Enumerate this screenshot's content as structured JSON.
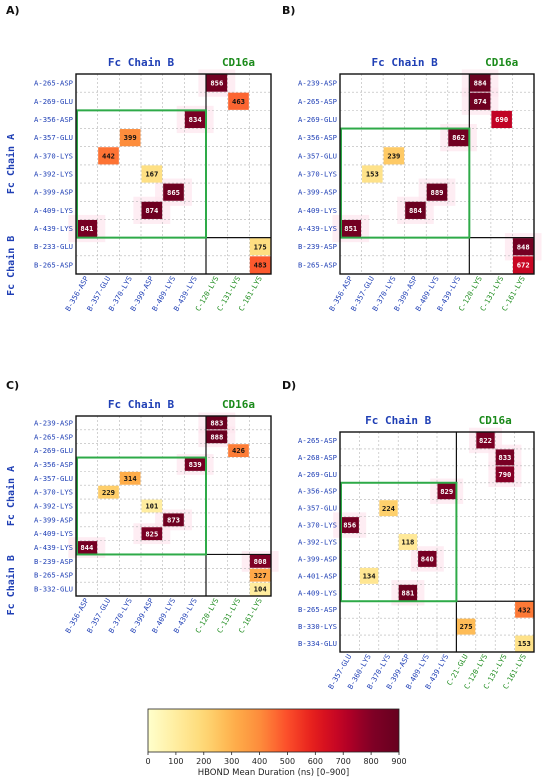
{
  "colors": {
    "fc_label": "#1f3fb5",
    "cd16a_label": "#1a8a1a",
    "fc_fc_box": "#2eaa48",
    "outer_box": "#111111",
    "grid": "#b4b4b4"
  },
  "colormap": {
    "min": 0,
    "max": 900,
    "stops": [
      "#ffffcc",
      "#ffeda0",
      "#fed976",
      "#feb24c",
      "#fd8d3c",
      "#fc4e2a",
      "#e31a1c",
      "#bd0026",
      "#800026",
      "#67001f"
    ]
  },
  "colorbar": {
    "title": "HBOND Mean Duration (ns) [0–900]",
    "ticks": [
      "0",
      "100",
      "200",
      "300",
      "400",
      "500",
      "600",
      "700",
      "800",
      "900"
    ]
  },
  "chart_data": [
    {
      "type": "heatmap",
      "panel_label": "A)",
      "header_fc": "Fc Chain B",
      "header_cd16a": "CD16a",
      "side_label_a": "Fc Chain A",
      "side_label_b": "Fc Chain B",
      "rows": [
        "A-265-ASP",
        "A-269-GLU",
        "A-356-ASP",
        "A-357-GLU",
        "A-370-LYS",
        "A-392-LYS",
        "A-399-ASP",
        "A-409-LYS",
        "A-439-LYS",
        "B-233-GLU",
        "B-265-ASP"
      ],
      "row_chain": [
        "A",
        "A",
        "A",
        "A",
        "A",
        "A",
        "A",
        "A",
        "A",
        "B",
        "B"
      ],
      "cols": [
        "B-356-ASP",
        "B-357-GLU",
        "B-370-LYS",
        "B-399-ASP",
        "B-409-LYS",
        "B-439-LYS",
        "C-120-LYS",
        "C-131-LYS",
        "C-161-LYS"
      ],
      "col_group": [
        "fc",
        "fc",
        "fc",
        "fc",
        "fc",
        "fc",
        "cd",
        "cd",
        "cd"
      ],
      "cells": [
        {
          "row": "A-265-ASP",
          "col": "C-120-LYS",
          "value": 856
        },
        {
          "row": "A-269-GLU",
          "col": "C-131-LYS",
          "value": 463
        },
        {
          "row": "A-356-ASP",
          "col": "B-439-LYS",
          "value": 834
        },
        {
          "row": "A-357-GLU",
          "col": "B-370-LYS",
          "value": 399
        },
        {
          "row": "A-370-LYS",
          "col": "B-357-GLU",
          "value": 442
        },
        {
          "row": "A-392-LYS",
          "col": "B-399-ASP",
          "value": 167
        },
        {
          "row": "A-399-ASP",
          "col": "B-409-LYS",
          "value": 865
        },
        {
          "row": "A-409-LYS",
          "col": "B-399-ASP",
          "value": 874
        },
        {
          "row": "A-439-LYS",
          "col": "B-356-ASP",
          "value": 841
        },
        {
          "row": "B-233-GLU",
          "col": "C-161-LYS",
          "value": 175
        },
        {
          "row": "B-265-ASP",
          "col": "C-161-LYS",
          "value": 483
        }
      ]
    },
    {
      "type": "heatmap",
      "panel_label": "B)",
      "header_fc": "Fc Chain B",
      "header_cd16a": "CD16a",
      "side_label_a": "",
      "side_label_b": "",
      "rows": [
        "A-239-ASP",
        "A-265-ASP",
        "A-269-GLU",
        "A-356-ASP",
        "A-357-GLU",
        "A-370-LYS",
        "A-399-ASP",
        "A-409-LYS",
        "A-439-LYS",
        "B-239-ASP",
        "B-265-ASP"
      ],
      "row_chain": [
        "A",
        "A",
        "A",
        "A",
        "A",
        "A",
        "A",
        "A",
        "A",
        "B",
        "B"
      ],
      "cols": [
        "B-356-ASP",
        "B-357-GLU",
        "B-370-LYS",
        "B-399-ASP",
        "B-409-LYS",
        "B-439-LYS",
        "C-120-LYS",
        "C-131-LYS",
        "C-161-LYS"
      ],
      "col_group": [
        "fc",
        "fc",
        "fc",
        "fc",
        "fc",
        "fc",
        "cd",
        "cd",
        "cd"
      ],
      "cells": [
        {
          "row": "A-239-ASP",
          "col": "C-120-LYS",
          "value": 884
        },
        {
          "row": "A-265-ASP",
          "col": "C-120-LYS",
          "value": 874
        },
        {
          "row": "A-269-GLU",
          "col": "C-131-LYS",
          "value": 690
        },
        {
          "row": "A-356-ASP",
          "col": "B-439-LYS",
          "value": 862
        },
        {
          "row": "A-357-GLU",
          "col": "B-370-LYS",
          "value": 239
        },
        {
          "row": "A-370-LYS",
          "col": "B-357-GLU",
          "value": 153
        },
        {
          "row": "A-399-ASP",
          "col": "B-409-LYS",
          "value": 889
        },
        {
          "row": "A-409-LYS",
          "col": "B-399-ASP",
          "value": 884
        },
        {
          "row": "A-439-LYS",
          "col": "B-356-ASP",
          "value": 851
        },
        {
          "row": "B-239-ASP",
          "col": "C-161-LYS",
          "value": 848
        },
        {
          "row": "B-265-ASP",
          "col": "C-161-LYS",
          "value": 672
        }
      ]
    },
    {
      "type": "heatmap",
      "panel_label": "C)",
      "header_fc": "Fc Chain B",
      "header_cd16a": "CD16a",
      "side_label_a": "Fc Chain A",
      "side_label_b": "Fc Chain B",
      "rows": [
        "A-239-ASP",
        "A-265-ASP",
        "A-269-GLU",
        "A-356-ASP",
        "A-357-GLU",
        "A-370-LYS",
        "A-392-LYS",
        "A-399-ASP",
        "A-409-LYS",
        "A-439-LYS",
        "B-239-ASP",
        "B-265-ASP",
        "B-332-GLU"
      ],
      "row_chain": [
        "A",
        "A",
        "A",
        "A",
        "A",
        "A",
        "A",
        "A",
        "A",
        "A",
        "B",
        "B",
        "B"
      ],
      "cols": [
        "B-356-ASP",
        "B-357-GLU",
        "B-370-LYS",
        "B-399-ASP",
        "B-409-LYS",
        "B-439-LYS",
        "C-120-LYS",
        "C-131-LYS",
        "C-161-LYS"
      ],
      "col_group": [
        "fc",
        "fc",
        "fc",
        "fc",
        "fc",
        "fc",
        "cd",
        "cd",
        "cd"
      ],
      "cells": [
        {
          "row": "A-239-ASP",
          "col": "C-120-LYS",
          "value": 883
        },
        {
          "row": "A-265-ASP",
          "col": "C-120-LYS",
          "value": 888
        },
        {
          "row": "A-269-GLU",
          "col": "C-131-LYS",
          "value": 426
        },
        {
          "row": "A-356-ASP",
          "col": "B-439-LYS",
          "value": 839
        },
        {
          "row": "A-357-GLU",
          "col": "B-370-LYS",
          "value": 314
        },
        {
          "row": "A-370-LYS",
          "col": "B-357-GLU",
          "value": 229
        },
        {
          "row": "A-392-LYS",
          "col": "B-399-ASP",
          "value": 101
        },
        {
          "row": "A-399-ASP",
          "col": "B-409-LYS",
          "value": 873
        },
        {
          "row": "A-409-LYS",
          "col": "B-399-ASP",
          "value": 825
        },
        {
          "row": "A-439-LYS",
          "col": "B-356-ASP",
          "value": 844
        },
        {
          "row": "B-239-ASP",
          "col": "C-161-LYS",
          "value": 808
        },
        {
          "row": "B-265-ASP",
          "col": "C-161-LYS",
          "value": 327
        },
        {
          "row": "B-332-GLU",
          "col": "C-161-LYS",
          "value": 104
        }
      ]
    },
    {
      "type": "heatmap",
      "panel_label": "D)",
      "header_fc": "Fc Chain B",
      "header_cd16a": "CD16a",
      "side_label_a": "",
      "side_label_b": "",
      "rows": [
        "A-265-ASP",
        "A-268-ASP",
        "A-269-GLU",
        "A-356-ASP",
        "A-357-GLU",
        "A-370-LYS",
        "A-392-LYS",
        "A-399-ASP",
        "A-401-ASP",
        "A-409-LYS",
        "B-265-ASP",
        "B-330-LYS",
        "B-334-GLU"
      ],
      "row_chain": [
        "A",
        "A",
        "A",
        "A",
        "A",
        "A",
        "A",
        "A",
        "A",
        "A",
        "B",
        "B",
        "B"
      ],
      "cols": [
        "B-357-GLU",
        "B-360-LYS",
        "B-370-LYS",
        "B-399-ASP",
        "B-409-LYS",
        "B-439-LYS",
        "C-21-GLU",
        "C-120-LYS",
        "C-131-LYS",
        "C-161-LYS"
      ],
      "col_group": [
        "fc",
        "fc",
        "fc",
        "fc",
        "fc",
        "fc",
        "cd",
        "cd",
        "cd",
        "cd"
      ],
      "cells": [
        {
          "row": "A-265-ASP",
          "col": "C-120-LYS",
          "value": 822
        },
        {
          "row": "A-268-ASP",
          "col": "C-131-LYS",
          "value": 833
        },
        {
          "row": "A-269-GLU",
          "col": "C-131-LYS",
          "value": 790
        },
        {
          "row": "A-356-ASP",
          "col": "B-439-LYS",
          "value": 829
        },
        {
          "row": "A-357-GLU",
          "col": "B-370-LYS",
          "value": 224
        },
        {
          "row": "A-370-LYS",
          "col": "B-357-GLU",
          "value": 856
        },
        {
          "row": "A-392-LYS",
          "col": "B-399-ASP",
          "value": 118
        },
        {
          "row": "A-399-ASP",
          "col": "B-409-LYS",
          "value": 840
        },
        {
          "row": "A-401-ASP",
          "col": "B-360-LYS",
          "value": 134
        },
        {
          "row": "A-409-LYS",
          "col": "B-399-ASP",
          "value": 881
        },
        {
          "row": "B-265-ASP",
          "col": "C-161-LYS",
          "value": 432
        },
        {
          "row": "B-330-LYS",
          "col": "C-21-GLU",
          "value": 275
        },
        {
          "row": "B-334-GLU",
          "col": "C-161-LYS",
          "value": 153
        }
      ]
    }
  ]
}
